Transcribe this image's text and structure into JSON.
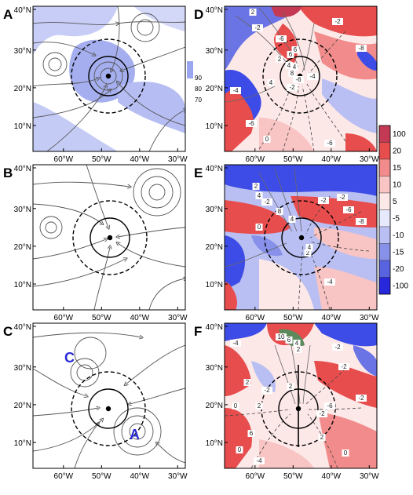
{
  "chart_data": [
    {
      "type": "heatmap",
      "panel": "A",
      "legend_values": [
        "90",
        "80",
        "70"
      ],
      "x_ticks": [
        "60°W",
        "50°W",
        "40°W",
        "30°W"
      ],
      "y_ticks": [
        "40°N",
        "30°N",
        "20°N",
        "10°N"
      ],
      "contour_labels": []
    },
    {
      "type": "heatmap",
      "panel": "B",
      "legend_values": [],
      "x_ticks": [
        "60°W",
        "50°W",
        "40°W",
        "30°W"
      ],
      "y_ticks": [
        "40°N",
        "30°N",
        "20°N",
        "10°N"
      ],
      "contour_labels": []
    },
    {
      "type": "heatmap",
      "panel": "C",
      "legend_values": [],
      "x_ticks": [
        "60°W",
        "50°W",
        "40°W",
        "30°W"
      ],
      "y_ticks": [
        "40°N",
        "30°N",
        "20°N",
        "10°N"
      ],
      "annotations": [
        "C",
        "A"
      ],
      "contour_labels": []
    },
    {
      "type": "heatmap",
      "panel": "D",
      "x_ticks": [
        "60°W",
        "50°W",
        "40°W",
        "30°W"
      ],
      "y_ticks": [
        "40°N",
        "30°N",
        "20°N",
        "10°N"
      ],
      "contour_labels": [
        "2",
        "-2",
        "-6",
        "-4",
        "-2",
        "-8",
        "2",
        "4",
        "6",
        "8",
        "-4",
        "-2",
        "-6",
        "4",
        "6",
        "-6",
        "0",
        "-6",
        "4"
      ]
    },
    {
      "type": "heatmap",
      "panel": "E",
      "x_ticks": [
        "60°W",
        "50°W",
        "40°W",
        "30°W"
      ],
      "y_ticks": [
        "40°N",
        "30°N",
        "20°N",
        "10°N"
      ],
      "contour_labels": [
        "2",
        "4",
        "-2",
        "-2",
        "-6",
        "-8",
        "8",
        "4",
        "-2",
        "2",
        "0",
        "4",
        "-4"
      ]
    },
    {
      "type": "heatmap",
      "panel": "F",
      "x_ticks": [
        "60°W",
        "50°W",
        "40°W",
        "30°W"
      ],
      "y_ticks": [
        "40°N",
        "30°N",
        "20°N",
        "10°N"
      ],
      "contour_labels": [
        "-4",
        "10",
        "6",
        "4",
        "2",
        "-2",
        "-2",
        "-6",
        "-2",
        "2",
        "0",
        "2",
        "2",
        "-2",
        "-2",
        "-4",
        "0",
        "6",
        "2",
        "0"
      ]
    }
  ],
  "panels": {
    "A": "A",
    "B": "B",
    "C": "C",
    "D": "D",
    "E": "E",
    "F": "F"
  },
  "colorbar": {
    "labels": [
      "100",
      "20",
      "15",
      "10",
      "5",
      "-5",
      "-10",
      "-15",
      "-20",
      "-100"
    ],
    "colors": [
      "#c43a54",
      "#e84d4d",
      "#f28c8c",
      "#f8c4c4",
      "#fde8e8",
      "#e6e8fb",
      "#b9bff2",
      "#8791ea",
      "#5863e0",
      "#2727dc"
    ]
  },
  "colors": {
    "blueShade": "#9aa6ef",
    "redStrong": "#e84d4d",
    "blueStrong": "#3d4ce6"
  }
}
